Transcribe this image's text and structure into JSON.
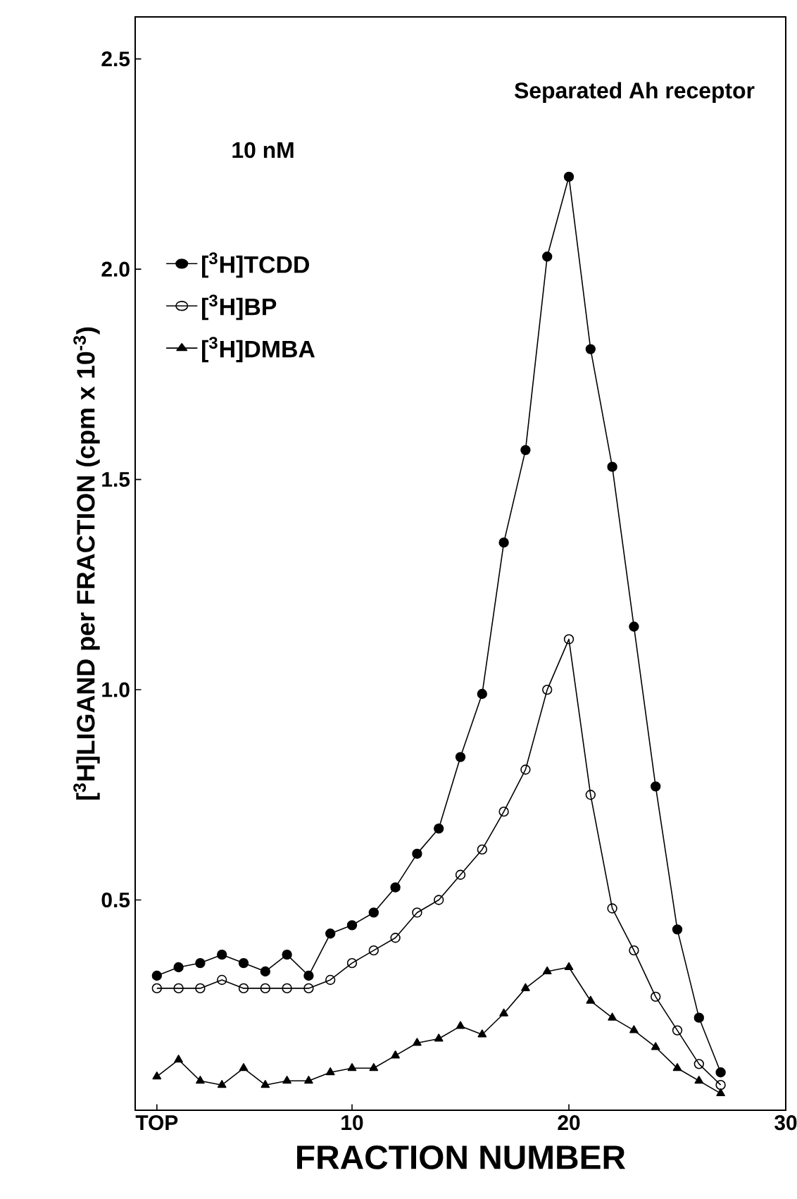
{
  "chart_data": {
    "type": "line",
    "xlabel": "FRACTION  NUMBER",
    "ylabel": "[$^{3}$H]LIGAND per FRACTION (cpm x 10$^{-3}$)",
    "annotations": [
      "Separated Ah receptor",
      "10 nM"
    ],
    "xlim": [
      0,
      30
    ],
    "ylim": [
      0,
      2.6
    ],
    "xticks": [
      {
        "value": 1,
        "label": "TOP"
      },
      10,
      20,
      30
    ],
    "yticks": [
      0.5,
      {
        "value": 1,
        "label": "1.0"
      },
      1.5,
      {
        "value": 2,
        "label": "2.0"
      },
      2.5
    ],
    "grid": false,
    "legend": "top left",
    "line_style": "solid",
    "x": [
      1,
      2,
      3,
      4,
      5,
      6,
      7,
      8,
      9,
      10,
      11,
      12,
      13,
      14,
      15,
      16,
      17,
      18,
      19,
      20,
      21,
      22,
      23,
      24,
      25,
      26,
      27
    ],
    "series": [
      {
        "name": "[$^{3}$H]TCDD",
        "color": "#000000",
        "marker": "circle",
        "values": [
          0.32,
          0.34,
          0.35,
          0.37,
          0.35,
          0.33,
          0.37,
          0.32,
          0.42,
          0.44,
          0.47,
          0.53,
          0.61,
          0.67,
          0.84,
          0.99,
          1.35,
          1.57,
          2.03,
          2.22,
          1.81,
          1.53,
          1.15,
          0.77,
          0.43,
          0.22,
          0.09
        ]
      },
      {
        "name": "[$^{3}$H]BP",
        "color": "#000000",
        "marker": "open circle",
        "values": [
          0.29,
          0.29,
          0.29,
          0.31,
          0.29,
          0.29,
          0.29,
          0.29,
          0.31,
          0.35,
          0.38,
          0.41,
          0.47,
          0.5,
          0.56,
          0.62,
          0.71,
          0.81,
          1.0,
          1.12,
          0.75,
          0.48,
          0.38,
          0.27,
          0.19,
          0.11,
          0.06
        ]
      },
      {
        "name": "[$^{3}$H]DMBA",
        "color": "#000000",
        "marker": "triangle",
        "values": [
          0.08,
          0.12,
          0.07,
          0.06,
          0.1,
          0.06,
          0.07,
          0.07,
          0.09,
          0.1,
          0.1,
          0.13,
          0.16,
          0.17,
          0.2,
          0.18,
          0.23,
          0.29,
          0.33,
          0.34,
          0.26,
          0.22,
          0.19,
          0.15,
          0.1,
          0.07,
          0.04
        ]
      }
    ]
  }
}
